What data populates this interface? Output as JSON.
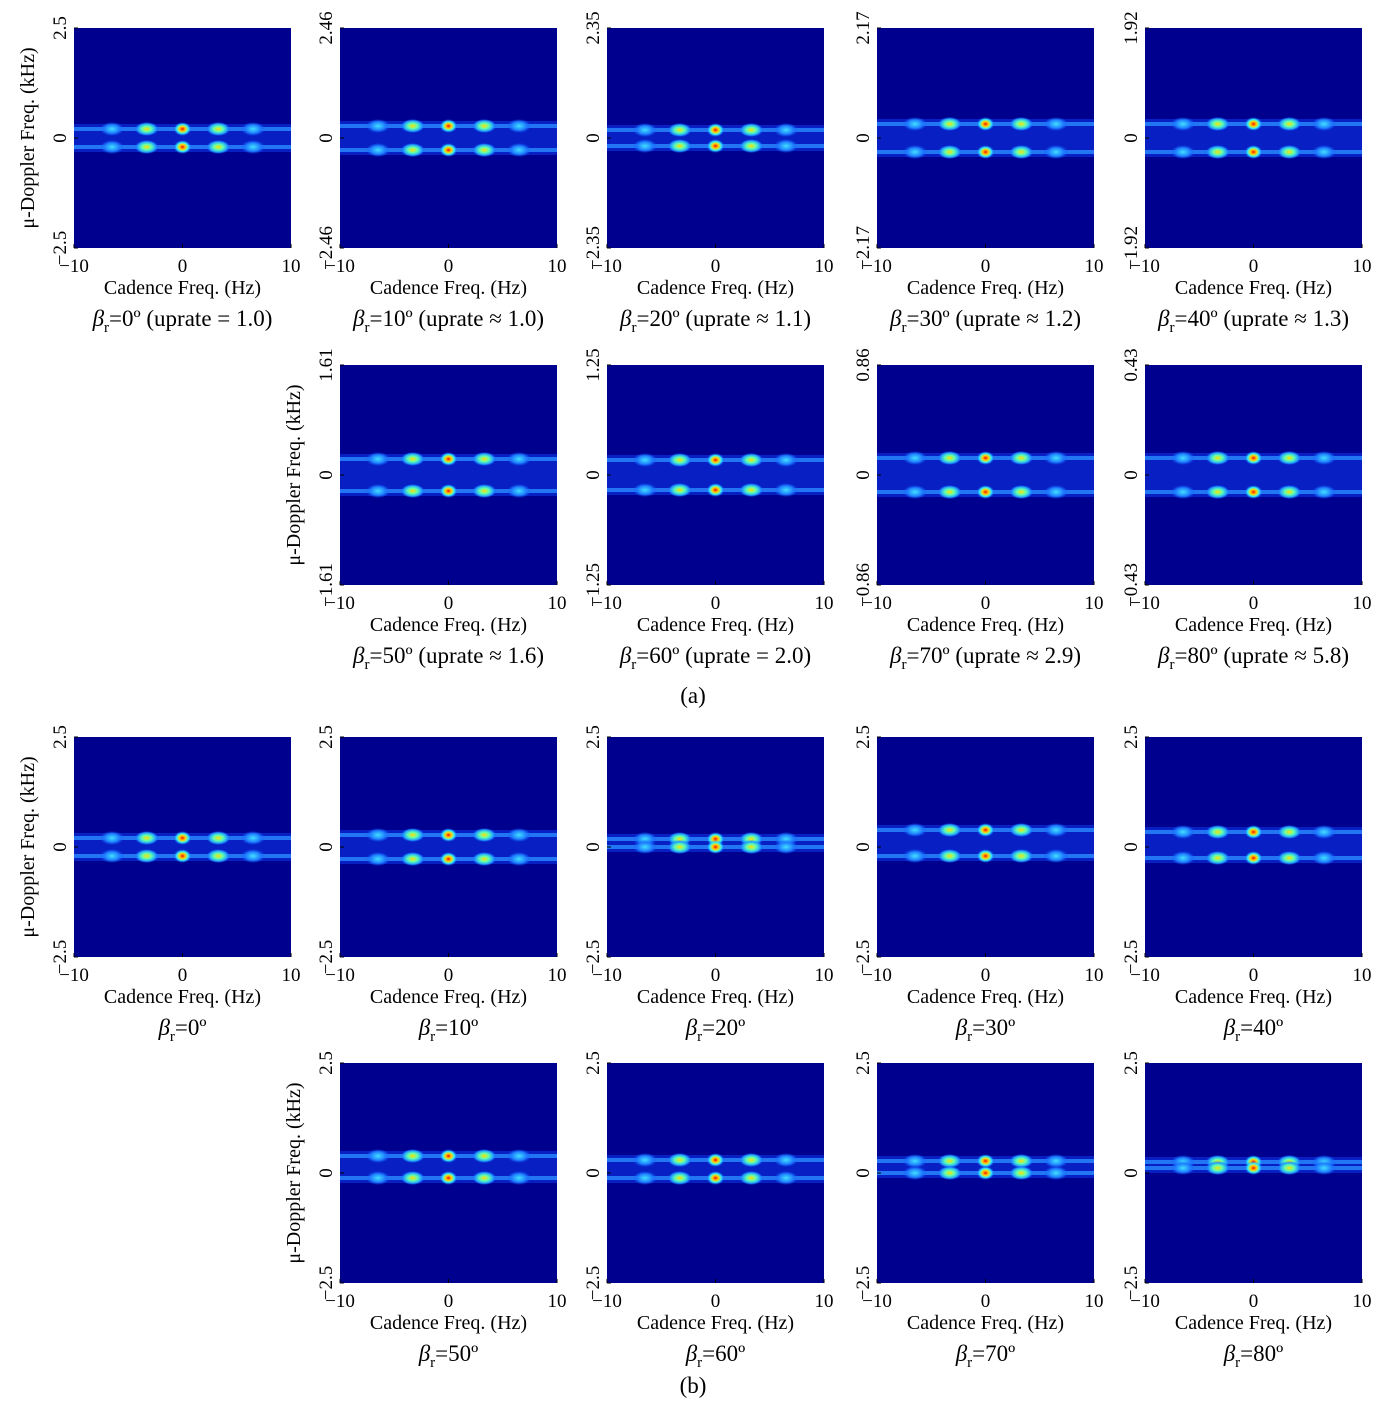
{
  "chart_data": [
    {
      "type": "heatmap",
      "xlabel": "Cadence Freq. (Hz)",
      "ylabel": "μ-Doppler Freq. (kHz)",
      "xlim": [
        -10,
        10
      ],
      "xticks": [
        {
          "value": -10,
          "label": "−10"
        },
        0,
        10
      ],
      "ylim": [
        -2.5,
        2.5
      ],
      "yticks": [
        {
          "value": -2.5,
          "label": "−2.5"
        },
        0,
        2.5
      ],
      "title_symbol": "β",
      "title_sub": "r",
      "title": "=0º (uprate = 1.0)"
    },
    {
      "type": "heatmap",
      "xlabel": "Cadence Freq. (Hz)",
      "xlim": [
        -10,
        10
      ],
      "xticks": [
        {
          "value": -10,
          "label": "−10"
        },
        0,
        10
      ],
      "ylim": [
        -2.46,
        2.46
      ],
      "yticks": [
        {
          "value": -2.46,
          "label": "−2.46"
        },
        0,
        2.46
      ],
      "title_symbol": "β",
      "title_sub": "r",
      "title": "=10º (uprate ≈ 1.0)"
    },
    {
      "type": "heatmap",
      "xlabel": "Cadence Freq. (Hz)",
      "xlim": [
        -10,
        10
      ],
      "xticks": [
        {
          "value": -10,
          "label": "−10"
        },
        0,
        10
      ],
      "ylim": [
        -2.35,
        2.35
      ],
      "yticks": [
        {
          "value": -2.35,
          "label": "−2.35"
        },
        0,
        2.35
      ],
      "title_symbol": "β",
      "title_sub": "r",
      "title": "=20º (uprate ≈ 1.1)"
    },
    {
      "type": "heatmap",
      "xlabel": "Cadence Freq. (Hz)",
      "xlim": [
        -10,
        10
      ],
      "xticks": [
        {
          "value": -10,
          "label": "−10"
        },
        0,
        10
      ],
      "ylim": [
        -2.17,
        2.17
      ],
      "yticks": [
        {
          "value": -2.17,
          "label": "−2.17"
        },
        0,
        2.17
      ],
      "title_symbol": "β",
      "title_sub": "r",
      "title": "=30º (uprate ≈ 1.2)"
    },
    {
      "type": "heatmap",
      "xlabel": "Cadence Freq. (Hz)",
      "xlim": [
        -10,
        10
      ],
      "xticks": [
        {
          "value": -10,
          "label": "−10"
        },
        0,
        10
      ],
      "ylim": [
        -1.92,
        1.92
      ],
      "yticks": [
        {
          "value": -1.92,
          "label": "−1.92"
        },
        0,
        1.92
      ],
      "title_symbol": "β",
      "title_sub": "r",
      "title": "=40º (uprate ≈ 1.3)"
    },
    {
      "type": "heatmap",
      "xlabel": "Cadence Freq. (Hz)",
      "ylabel": "μ-Doppler Freq. (kHz)",
      "xlim": [
        -10,
        10
      ],
      "xticks": [
        {
          "value": -10,
          "label": "−10"
        },
        0,
        10
      ],
      "ylim": [
        -1.61,
        1.61
      ],
      "yticks": [
        {
          "value": -1.61,
          "label": "−1.61"
        },
        0,
        1.61
      ],
      "title_symbol": "β",
      "title_sub": "r",
      "title": "=50º (uprate ≈ 1.6)"
    },
    {
      "type": "heatmap",
      "xlabel": "Cadence Freq. (Hz)",
      "xlim": [
        -10,
        10
      ],
      "xticks": [
        {
          "value": -10,
          "label": "−10"
        },
        0,
        10
      ],
      "ylim": [
        -1.25,
        1.25
      ],
      "yticks": [
        {
          "value": -1.25,
          "label": "−1.25"
        },
        0,
        1.25
      ],
      "title_symbol": "β",
      "title_sub": "r",
      "title": "=60º (uprate = 2.0)"
    },
    {
      "type": "heatmap",
      "xlabel": "Cadence Freq. (Hz)",
      "xlim": [
        -10,
        10
      ],
      "xticks": [
        {
          "value": -10,
          "label": "−10"
        },
        0,
        10
      ],
      "ylim": [
        -0.86,
        0.86
      ],
      "yticks": [
        {
          "value": -0.86,
          "label": "−0.86"
        },
        0,
        0.86
      ],
      "title_symbol": "β",
      "title_sub": "r",
      "title": "=70º (uprate ≈ 2.9)"
    },
    {
      "type": "heatmap",
      "xlabel": "Cadence Freq. (Hz)",
      "xlim": [
        -10,
        10
      ],
      "xticks": [
        {
          "value": -10,
          "label": "−10"
        },
        0,
        10
      ],
      "ylim": [
        -0.43,
        0.43
      ],
      "yticks": [
        {
          "value": -0.43,
          "label": "−0.43"
        },
        0,
        0.43
      ],
      "title_symbol": "β",
      "title_sub": "r",
      "title": "=80º (uprate ≈ 5.8)"
    },
    {
      "type": "heatmap",
      "xlabel": "Cadence Freq. (Hz)",
      "ylabel": "μ-Doppler Freq. (kHz)",
      "xlim": [
        -10,
        10
      ],
      "xticks": [
        {
          "value": -10,
          "label": "−10"
        },
        0,
        10
      ],
      "ylim": [
        -2.5,
        2.5
      ],
      "yticks": [
        {
          "value": -2.5,
          "label": "−2.5"
        },
        0,
        2.5
      ],
      "title_symbol": "β",
      "title_sub": "r",
      "title": "=0º"
    },
    {
      "type": "heatmap",
      "xlabel": "Cadence Freq. (Hz)",
      "xlim": [
        -10,
        10
      ],
      "xticks": [
        {
          "value": -10,
          "label": "−10"
        },
        0,
        10
      ],
      "ylim": [
        -2.5,
        2.5
      ],
      "yticks": [
        {
          "value": -2.5,
          "label": "−2.5"
        },
        0,
        2.5
      ],
      "title_symbol": "β",
      "title_sub": "r",
      "title": "=10º"
    },
    {
      "type": "heatmap",
      "xlabel": "Cadence Freq. (Hz)",
      "xlim": [
        -10,
        10
      ],
      "xticks": [
        {
          "value": -10,
          "label": "−10"
        },
        0,
        10
      ],
      "ylim": [
        -2.5,
        2.5
      ],
      "yticks": [
        {
          "value": -2.5,
          "label": "−2.5"
        },
        0,
        2.5
      ],
      "title_symbol": "β",
      "title_sub": "r",
      "title": "=20º"
    },
    {
      "type": "heatmap",
      "xlabel": "Cadence Freq. (Hz)",
      "xlim": [
        -10,
        10
      ],
      "xticks": [
        {
          "value": -10,
          "label": "−10"
        },
        0,
        10
      ],
      "ylim": [
        -2.5,
        2.5
      ],
      "yticks": [
        {
          "value": -2.5,
          "label": "−2.5"
        },
        0,
        2.5
      ],
      "title_symbol": "β",
      "title_sub": "r",
      "title": "=30º"
    },
    {
      "type": "heatmap",
      "xlabel": "Cadence Freq. (Hz)",
      "xlim": [
        -10,
        10
      ],
      "xticks": [
        {
          "value": -10,
          "label": "−10"
        },
        0,
        10
      ],
      "ylim": [
        -2.5,
        2.5
      ],
      "yticks": [
        {
          "value": -2.5,
          "label": "−2.5"
        },
        0,
        2.5
      ],
      "title_symbol": "β",
      "title_sub": "r",
      "title": "=40º"
    },
    {
      "type": "heatmap",
      "xlabel": "Cadence Freq. (Hz)",
      "ylabel": "μ-Doppler Freq. (kHz)",
      "xlim": [
        -10,
        10
      ],
      "xticks": [
        {
          "value": -10,
          "label": "−10"
        },
        0,
        10
      ],
      "ylim": [
        -2.5,
        2.5
      ],
      "yticks": [
        {
          "value": -2.5,
          "label": "−2.5"
        },
        0,
        2.5
      ],
      "title_symbol": "β",
      "title_sub": "r",
      "title": "=50º"
    },
    {
      "type": "heatmap",
      "xlabel": "Cadence Freq. (Hz)",
      "xlim": [
        -10,
        10
      ],
      "xticks": [
        {
          "value": -10,
          "label": "−10"
        },
        0,
        10
      ],
      "ylim": [
        -2.5,
        2.5
      ],
      "yticks": [
        {
          "value": -2.5,
          "label": "−2.5"
        },
        0,
        2.5
      ],
      "title_symbol": "β",
      "title_sub": "r",
      "title": "=60º"
    },
    {
      "type": "heatmap",
      "xlabel": "Cadence Freq. (Hz)",
      "xlim": [
        -10,
        10
      ],
      "xticks": [
        {
          "value": -10,
          "label": "−10"
        },
        0,
        10
      ],
      "ylim": [
        -2.5,
        2.5
      ],
      "yticks": [
        {
          "value": -2.5,
          "label": "−2.5"
        },
        0,
        2.5
      ],
      "title_symbol": "β",
      "title_sub": "r",
      "title": "=70º"
    },
    {
      "type": "heatmap",
      "xlabel": "Cadence Freq. (Hz)",
      "xlim": [
        -10,
        10
      ],
      "xticks": [
        {
          "value": -10,
          "label": "−10"
        },
        0,
        10
      ],
      "ylim": [
        -2.5,
        2.5
      ],
      "yticks": [
        {
          "value": -2.5,
          "label": "−2.5"
        },
        0,
        2.5
      ],
      "title_symbol": "β",
      "title_sub": "r",
      "title": "=80º"
    }
  ],
  "part_labels": [
    "(a)",
    "(b)"
  ]
}
